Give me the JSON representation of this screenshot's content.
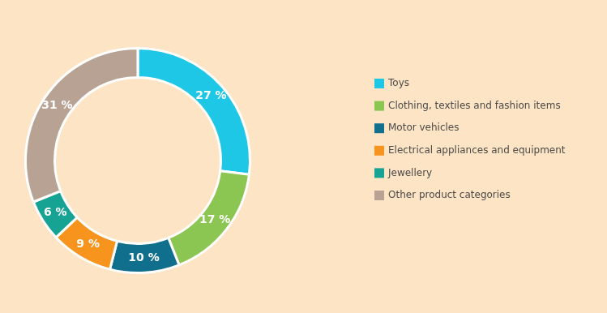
{
  "chart_data": {
    "type": "doughnut",
    "categories": [
      "Toys",
      "Clothing, textiles and fashion items",
      "Motor vehicles",
      "Electrical appliances and equipment",
      "Jewellery",
      "Other product categories"
    ],
    "values": [
      27,
      17,
      10,
      9,
      6,
      31
    ],
    "value_labels": [
      "27 %",
      "17 %",
      "10 %",
      "9 %",
      "6 %",
      "31 %"
    ],
    "colors": [
      "#1dc7e5",
      "#8bc653",
      "#106f8d",
      "#f7941e",
      "#17a393",
      "#b7a294"
    ],
    "data_labels": true,
    "legend": "right"
  }
}
